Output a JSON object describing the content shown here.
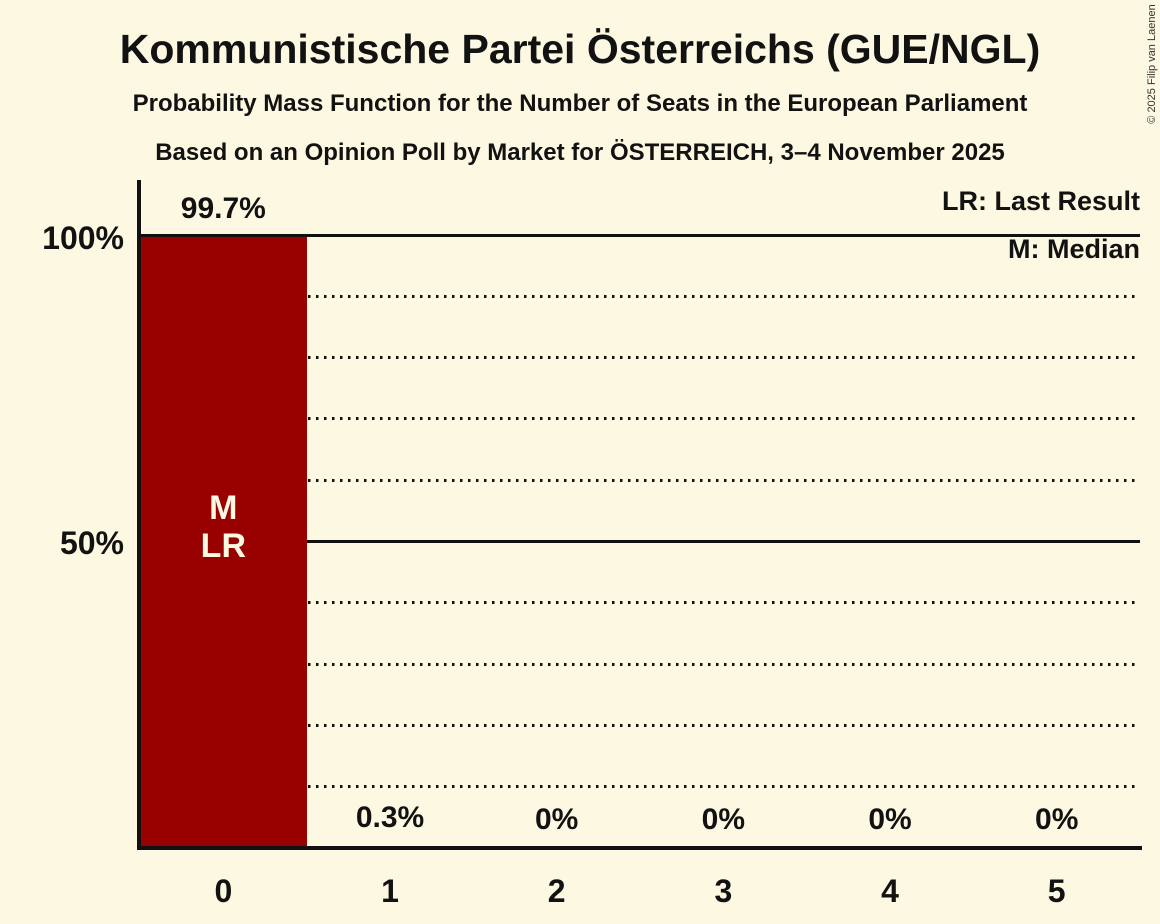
{
  "title": "Kommunistische Partei Österreichs (GUE/NGL)",
  "subtitle1": "Probability Mass Function for the Number of Seats in the European Parliament",
  "subtitle2": "Based on an Opinion Poll by Market for ÖSTERREICH, 3–4 November 2025",
  "copyright": "© 2025 Filip van Laenen",
  "legend": {
    "lr": "LR: Last Result",
    "m": "M: Median"
  },
  "colors": {
    "background": "#FDF8E1",
    "bar": "#990000",
    "text": "#121212",
    "bar_label": "#FDF8E1"
  },
  "chart_data": {
    "type": "bar",
    "title": "Kommunistische Partei Österreichs (GUE/NGL)",
    "xlabel": "",
    "ylabel": "",
    "categories": [
      "0",
      "1",
      "2",
      "3",
      "4",
      "5"
    ],
    "values": [
      99.7,
      0.3,
      0,
      0,
      0,
      0
    ],
    "value_labels": [
      "99.7%",
      "0.3%",
      "0%",
      "0%",
      "0%",
      "0%"
    ],
    "bar_annotations": [
      [
        "M",
        "LR"
      ],
      [],
      [],
      [],
      [],
      []
    ],
    "ylim": [
      0,
      100
    ],
    "y_ticks": [
      {
        "value": 100,
        "label": "100%"
      },
      {
        "value": 50,
        "label": "50%"
      }
    ],
    "gridlines": {
      "solid": [
        100,
        50
      ],
      "dotted": [
        90,
        80,
        70,
        60,
        40,
        30,
        20,
        10
      ]
    },
    "legend_position": "top-right",
    "legend_entries": [
      "LR: Last Result",
      "M: Median"
    ]
  }
}
